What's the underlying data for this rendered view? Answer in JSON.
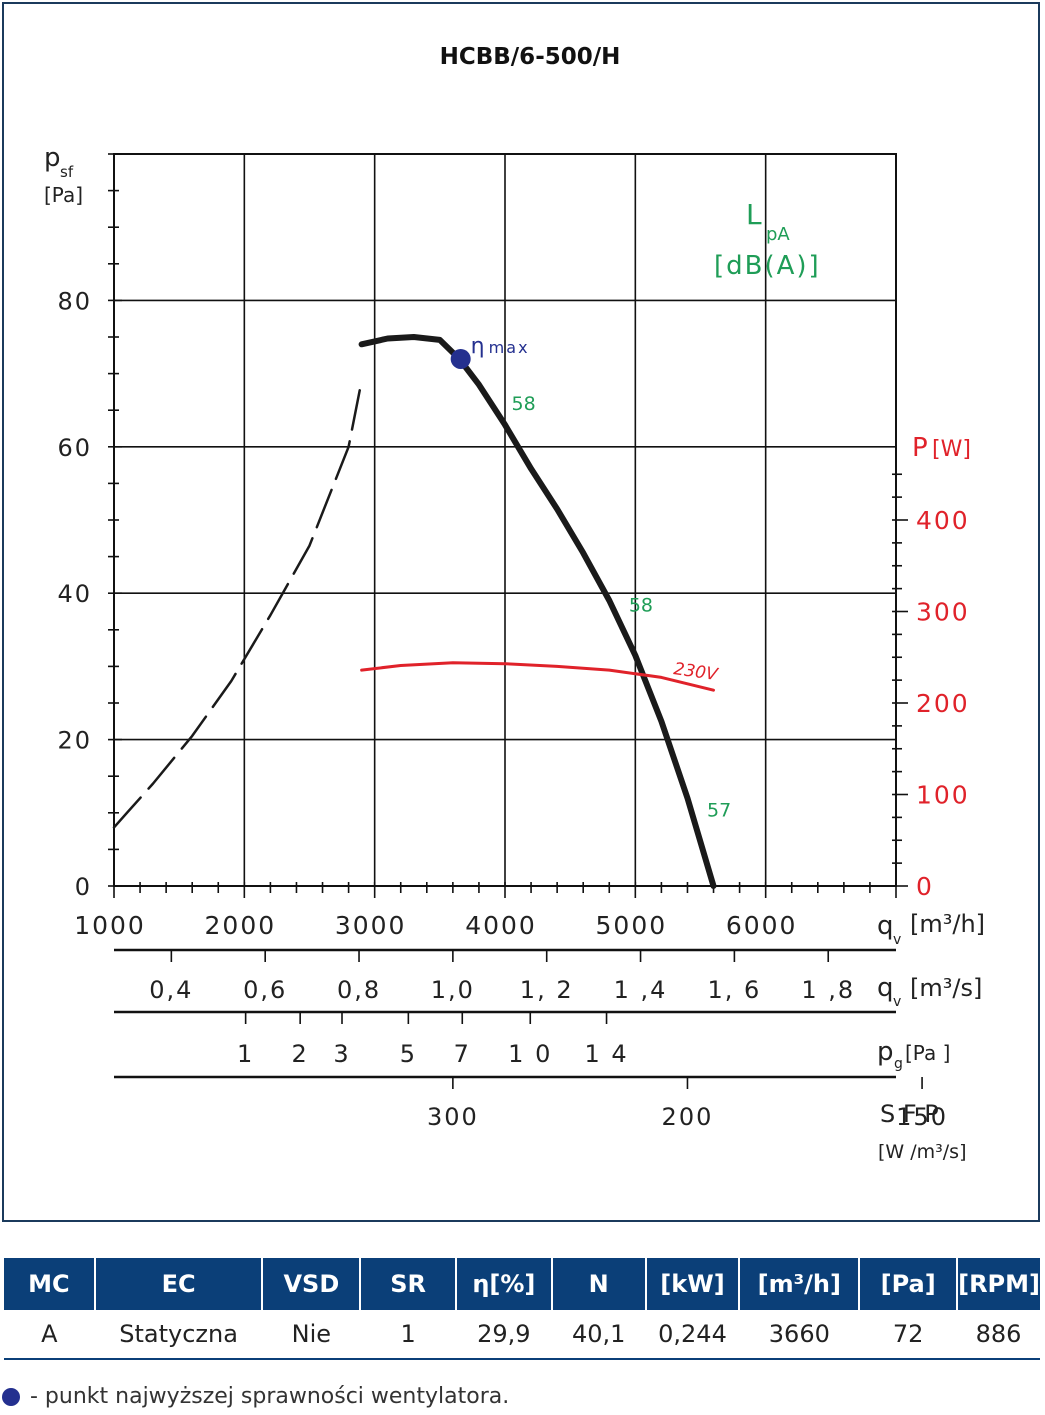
{
  "chart_data": {
    "type": "line",
    "title": "HCBB/6-500/H",
    "y_left": {
      "label": "p",
      "label_sub": "sf",
      "unit": "[Pa]",
      "range": [
        0,
        100
      ],
      "ticks": [
        0,
        20,
        40,
        60,
        80
      ]
    },
    "y_right": {
      "label": "P",
      "unit": "[W]",
      "range": [
        0,
        800
      ],
      "ticks": [
        0,
        100,
        200,
        300,
        400
      ]
    },
    "x_m3h": {
      "label": "q",
      "label_sub": "v",
      "unit": "[m³/h]",
      "range": [
        1000,
        7000
      ],
      "ticks": [
        1000,
        2000,
        3000,
        4000,
        5000,
        6000
      ]
    },
    "x_m3s": {
      "label": "q",
      "label_sub": "v",
      "unit": "[m³/s]",
      "ticks": [
        "0,4",
        "0,6",
        "0,8",
        "1,0",
        "1, 2",
        "1 ,4",
        "1, 6",
        "1 ,8"
      ],
      "values": [
        0.4,
        0.6,
        0.8,
        1.0,
        1.2,
        1.4,
        1.6,
        1.8
      ]
    },
    "x_pg": {
      "label": "p",
      "label_sub": "g",
      "unit": "[Pa ]",
      "ticks": [
        "1",
        "2",
        "3",
        "5",
        "7",
        "1 0",
        "1 4"
      ],
      "values": [
        1,
        2,
        3,
        5,
        7,
        10,
        14
      ]
    },
    "x_sfp": {
      "label": "S F P",
      "unit": "[W /m³/s]",
      "ticks": [
        "300",
        "200",
        "150"
      ],
      "values": [
        300,
        200,
        150
      ]
    },
    "lpa_label": {
      "main": "L",
      "sub": "pA",
      "unit": "[dB(A)]"
    },
    "series": [
      {
        "name": "",
        "kind": "pressure",
        "unit": "Pa",
        "color": "#1a1a1a",
        "x": [
          2900,
          3100,
          3300,
          3500,
          3650,
          3800,
          4000,
          4200,
          4400,
          4600,
          4800,
          5000,
          5200,
          5400,
          5600
        ],
        "y": [
          74,
          74.8,
          75,
          74.6,
          72,
          68.5,
          63,
          57,
          51.5,
          45.5,
          39,
          31.5,
          22.5,
          12,
          0
        ]
      },
      {
        "name": "",
        "kind": "system",
        "unit": "Pa",
        "color": "#1a1a1a",
        "dashed": true,
        "x": [
          1000,
          1300,
          1600,
          1900,
          2200,
          2500,
          2800,
          2900
        ],
        "y": [
          8,
          14,
          20.5,
          28,
          37,
          46.5,
          60,
          69
        ]
      },
      {
        "name": "230V",
        "kind": "power",
        "unit": "W",
        "color": "#e0222a",
        "x": [
          2900,
          3200,
          3600,
          4000,
          4400,
          4800,
          5200,
          5600
        ],
        "y": [
          236,
          241,
          244,
          243,
          240,
          236,
          228,
          214
        ]
      }
    ],
    "noise_labels": [
      {
        "text": "58",
        "x": 4050,
        "y": 65
      },
      {
        "text": "58",
        "x": 4950,
        "y": 37.5
      },
      {
        "text": "57",
        "x": 5550,
        "y": 9.5
      }
    ],
    "eta_max": {
      "symbol": "η",
      "label": "max",
      "x": 3660,
      "y": 72,
      "color": "#24308f"
    },
    "grid": true
  },
  "table": {
    "headers": [
      "MC",
      "EC",
      "VSD",
      "SR",
      "η[%]",
      "N",
      "[kW]",
      "[m³/h]",
      "[Pa]",
      "[RPM]"
    ],
    "rows": [
      [
        "A",
        "Statyczna",
        "Nie",
        "1",
        "29,9",
        "40,1",
        "0,244",
        "3660",
        "72",
        "886"
      ]
    ]
  },
  "legend_note": "- punkt najwyższej sprawności wentylatora."
}
